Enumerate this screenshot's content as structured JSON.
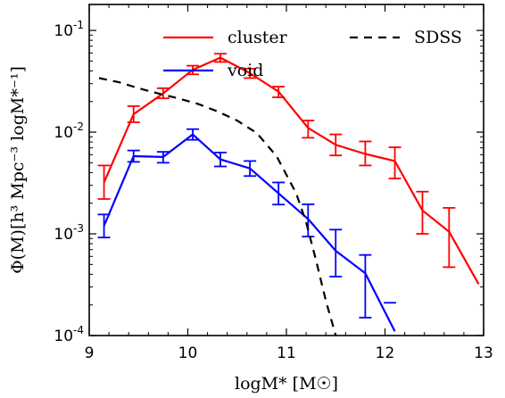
{
  "chart_data": {
    "type": "line",
    "xlabel": "logM* [M☉]",
    "ylabel": "Φ(M)[h³ Mpc⁻³ logM*⁻¹]",
    "xlim": [
      9,
      13
    ],
    "ylim": [
      0.0001,
      0.18
    ],
    "yscale": "log",
    "x_ticks": [
      9,
      10,
      11,
      12,
      13
    ],
    "x_tick_labels": [
      "9",
      "10",
      "11",
      "12",
      "13"
    ],
    "y_ticks": [
      0.0001,
      0.001,
      0.01,
      0.1
    ],
    "y_tick_labels": [
      {
        "base": "10",
        "exp": "-4"
      },
      {
        "base": "10",
        "exp": "-3"
      },
      {
        "base": "10",
        "exp": "-2"
      },
      {
        "base": "10",
        "exp": "-1"
      }
    ],
    "legend": {
      "placement": "top",
      "entries": [
        "cluster",
        "void",
        "SDSS"
      ]
    },
    "series": [
      {
        "name": "cluster",
        "color": "#ff0000",
        "style": "solid",
        "errorbars": true,
        "x": [
          9.15,
          9.45,
          9.75,
          10.05,
          10.33,
          10.63,
          10.92,
          11.22,
          11.5,
          11.8,
          12.1,
          12.38,
          12.65,
          12.95
        ],
        "y": [
          0.0032,
          0.015,
          0.024,
          0.041,
          0.054,
          0.038,
          0.025,
          0.011,
          0.0075,
          0.0061,
          0.0052,
          0.0017,
          0.00105,
          0.00032
        ],
        "y_lo": [
          0.0022,
          0.0125,
          0.0215,
          0.037,
          0.049,
          0.034,
          0.022,
          0.0088,
          0.0059,
          0.0047,
          0.0035,
          0.001,
          0.00047,
          null
        ],
        "y_hi": [
          0.0047,
          0.018,
          0.027,
          0.045,
          0.059,
          0.042,
          0.028,
          0.013,
          0.0095,
          0.0081,
          0.0071,
          0.0026,
          0.0018,
          null
        ]
      },
      {
        "name": "void",
        "color": "#0000ff",
        "style": "solid",
        "errorbars": true,
        "x": [
          9.15,
          9.45,
          9.75,
          10.05,
          10.33,
          10.63,
          10.92,
          11.22,
          11.5,
          11.8,
          12.1
        ],
        "y": [
          0.0012,
          0.0058,
          0.0057,
          0.0095,
          0.0054,
          0.0044,
          0.0025,
          0.0014,
          0.00068,
          0.00041,
          0.00011
        ],
        "y_lo": [
          0.00092,
          0.0051,
          0.005,
          0.0084,
          0.0046,
          0.0037,
          0.00194,
          0.00094,
          0.00038,
          0.00015,
          null
        ],
        "y_hi": [
          0.00155,
          0.0066,
          0.0064,
          0.0107,
          0.0063,
          0.0052,
          0.0032,
          0.00195,
          0.0011,
          0.00062,
          null
        ],
        "extra_markers": [
          {
            "x": 12.05,
            "y": 0.00021
          }
        ]
      },
      {
        "name": "SDSS",
        "color": "#000000",
        "style": "dashed",
        "errorbars": false,
        "x": [
          9.1,
          9.3,
          9.5,
          9.7,
          9.9,
          10.1,
          10.3,
          10.5,
          10.7,
          10.9,
          11.1,
          11.2,
          11.3,
          11.4,
          11.5
        ],
        "y": [
          0.034,
          0.031,
          0.027,
          0.024,
          0.0215,
          0.019,
          0.016,
          0.013,
          0.0098,
          0.0058,
          0.0025,
          0.0013,
          0.00055,
          0.00022,
          0.0001
        ]
      }
    ]
  }
}
